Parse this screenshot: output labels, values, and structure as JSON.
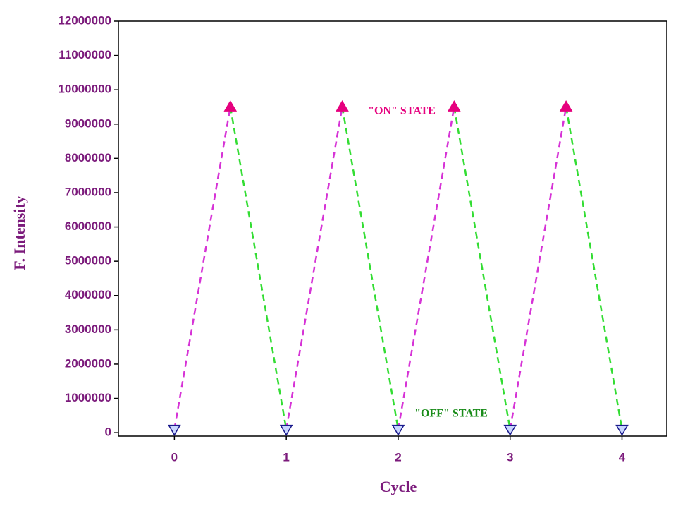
{
  "chart_data": {
    "type": "scatter",
    "x_label": "Cycle",
    "y_label": "F. Intensity",
    "xlim": [
      -0.5,
      4.4
    ],
    "xticks": [
      0,
      1,
      2,
      3,
      4
    ],
    "ylim": [
      -100000,
      12000000
    ],
    "yticks": [
      0,
      1000000,
      2000000,
      3000000,
      4000000,
      5000000,
      6000000,
      7000000,
      8000000,
      9000000,
      10000000,
      11000000,
      12000000
    ],
    "series": [
      {
        "x": [
          0,
          1,
          2,
          3,
          4
        ],
        "values": [
          100000,
          100000,
          100000,
          100000,
          100000
        ],
        "color": "#1a1a8c",
        "marker": "down",
        "line_color": "#d633d6"
      },
      {
        "x": [
          0.5,
          1.5,
          2.5,
          3.5
        ],
        "values": [
          9500000,
          9500000,
          9500000,
          9500000
        ],
        "color": "#e6007e",
        "marker": "up",
        "line_color": "#33dd33"
      }
    ],
    "annotations": [
      {
        "text": "\"ON\" STATE",
        "color": "#e6007e"
      },
      {
        "text": "\"OFF\" STATE",
        "color": "#1a8c1a"
      }
    ]
  }
}
